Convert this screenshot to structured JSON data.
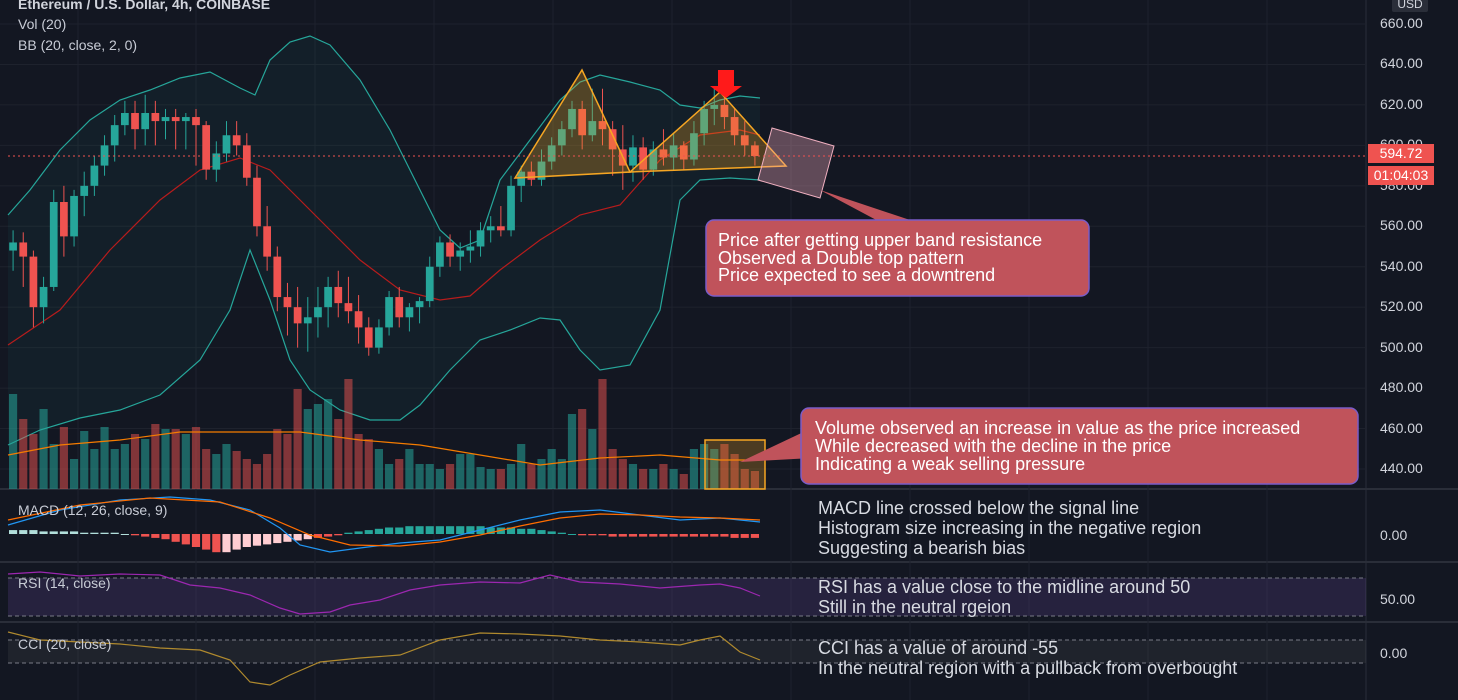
{
  "header": {
    "title": "Ethereum / U.S. Dollar, 4h, COINBASE",
    "vol_label": "Vol (20)",
    "bb_label": "BB (20, close, 2, 0)",
    "currency": "USD"
  },
  "price_axis": {
    "ticks": [
      "660.00",
      "640.00",
      "620.00",
      "600.00",
      "580.00",
      "560.00",
      "540.00",
      "520.00",
      "500.00",
      "480.00",
      "460.00",
      "440.00"
    ],
    "current_price": "594.72",
    "countdown": "01:04:03"
  },
  "panes": {
    "macd_label": "MACD (12, 26, close, 9)",
    "macd_tick": "0.00",
    "rsi_label": "RSI (14, close)",
    "rsi_tick": "50.00",
    "cci_label": "CCI (20, close)",
    "cci_tick": "0.00"
  },
  "annotations": {
    "price_note": [
      "Price after getting upper band resistance",
      "Observed a Double top pattern",
      "Price expected to see a downtrend"
    ],
    "volume_note": [
      "Volume observed an increase in value as the price increased",
      "While decreased with the decline in the price",
      "Indicating a weak selling pressure"
    ],
    "macd_note": [
      "MACD line crossed below the signal line",
      "Histogram size increasing in the negative region",
      "Suggesting a bearish bias"
    ],
    "rsi_note": [
      "RSI has a value close to the midline around 50",
      "Still in the neutral rgeion"
    ],
    "cci_note": [
      "CCI has a value of around -55",
      "In the neutral region with a pullback from overbought"
    ]
  },
  "colors": {
    "up": "#26a69a",
    "down": "#ef5350",
    "bb_band": "#26a69a",
    "bb_mid": "#b71c1c",
    "macd_line": "#2196f3",
    "signal_line": "#ff6d00",
    "rsi_line": "#9c27b0",
    "cci_line": "#b08a2e",
    "pattern": "#f6a623",
    "callout": "#c0535b"
  },
  "chart_data": {
    "type": "candlestick",
    "title": "Ethereum / U.S. Dollar, 4h, COINBASE",
    "ylim": [
      430,
      665
    ],
    "candles": [
      [
        548,
        558,
        538,
        552
      ],
      [
        552,
        557,
        530,
        545
      ],
      [
        545,
        548,
        510,
        520
      ],
      [
        520,
        535,
        512,
        530
      ],
      [
        530,
        578,
        528,
        572
      ],
      [
        572,
        580,
        545,
        555
      ],
      [
        555,
        578,
        550,
        575
      ],
      [
        575,
        587,
        565,
        580
      ],
      [
        580,
        595,
        575,
        590
      ],
      [
        590,
        605,
        585,
        600
      ],
      [
        600,
        615,
        592,
        610
      ],
      [
        610,
        622,
        605,
        616
      ],
      [
        616,
        622,
        598,
        608
      ],
      [
        608,
        625,
        600,
        616
      ],
      [
        616,
        622,
        600,
        612
      ],
      [
        612,
        618,
        603,
        614
      ],
      [
        614,
        618,
        598,
        612
      ],
      [
        612,
        616,
        598,
        614
      ],
      [
        614,
        618,
        590,
        610
      ],
      [
        610,
        612,
        583,
        588
      ],
      [
        588,
        602,
        582,
        596
      ],
      [
        596,
        612,
        592,
        605
      ],
      [
        605,
        612,
        595,
        600
      ],
      [
        600,
        606,
        580,
        584
      ],
      [
        584,
        590,
        555,
        560
      ],
      [
        560,
        570,
        538,
        545
      ],
      [
        545,
        550,
        518,
        525
      ],
      [
        525,
        532,
        506,
        520
      ],
      [
        520,
        530,
        500,
        512
      ],
      [
        512,
        525,
        498,
        515
      ],
      [
        515,
        530,
        505,
        520
      ],
      [
        520,
        535,
        510,
        530
      ],
      [
        530,
        538,
        515,
        522
      ],
      [
        522,
        535,
        512,
        518
      ],
      [
        518,
        526,
        502,
        510
      ],
      [
        510,
        515,
        496,
        500
      ],
      [
        500,
        514,
        497,
        510
      ],
      [
        510,
        528,
        506,
        525
      ],
      [
        525,
        530,
        510,
        515
      ],
      [
        515,
        522,
        508,
        520
      ],
      [
        520,
        525,
        512,
        523
      ],
      [
        523,
        545,
        520,
        540
      ],
      [
        540,
        555,
        535,
        552
      ],
      [
        552,
        556,
        540,
        545
      ],
      [
        545,
        552,
        538,
        548
      ],
      [
        548,
        558,
        542,
        550
      ],
      [
        550,
        562,
        545,
        558
      ],
      [
        558,
        565,
        552,
        560
      ],
      [
        560,
        570,
        555,
        558
      ],
      [
        558,
        585,
        555,
        580
      ],
      [
        580,
        590,
        572,
        587
      ],
      [
        587,
        592,
        580,
        583
      ],
      [
        583,
        598,
        580,
        592
      ],
      [
        592,
        604,
        588,
        600
      ],
      [
        600,
        612,
        595,
        608
      ],
      [
        608,
        622,
        604,
        618
      ],
      [
        618,
        622,
        598,
        605
      ],
      [
        605,
        628,
        602,
        612
      ],
      [
        612,
        628,
        600,
        608
      ],
      [
        608,
        612,
        585,
        598
      ],
      [
        598,
        610,
        578,
        590
      ],
      [
        590,
        605,
        582,
        599
      ],
      [
        599,
        604,
        583,
        588
      ],
      [
        588,
        602,
        585,
        598
      ],
      [
        598,
        608,
        590,
        594
      ],
      [
        594,
        606,
        588,
        600
      ],
      [
        600,
        602,
        588,
        593
      ],
      [
        593,
        612,
        590,
        606
      ],
      [
        606,
        622,
        600,
        618
      ],
      [
        618,
        628,
        610,
        620
      ],
      [
        620,
        624,
        608,
        614
      ],
      [
        614,
        618,
        600,
        605
      ],
      [
        605,
        612,
        595,
        600
      ],
      [
        600,
        602,
        590,
        594.72
      ]
    ],
    "macd_note": "MACD (12, 26, close, 9)",
    "rsi_value_approx": 50,
    "cci_value_approx": -55
  }
}
